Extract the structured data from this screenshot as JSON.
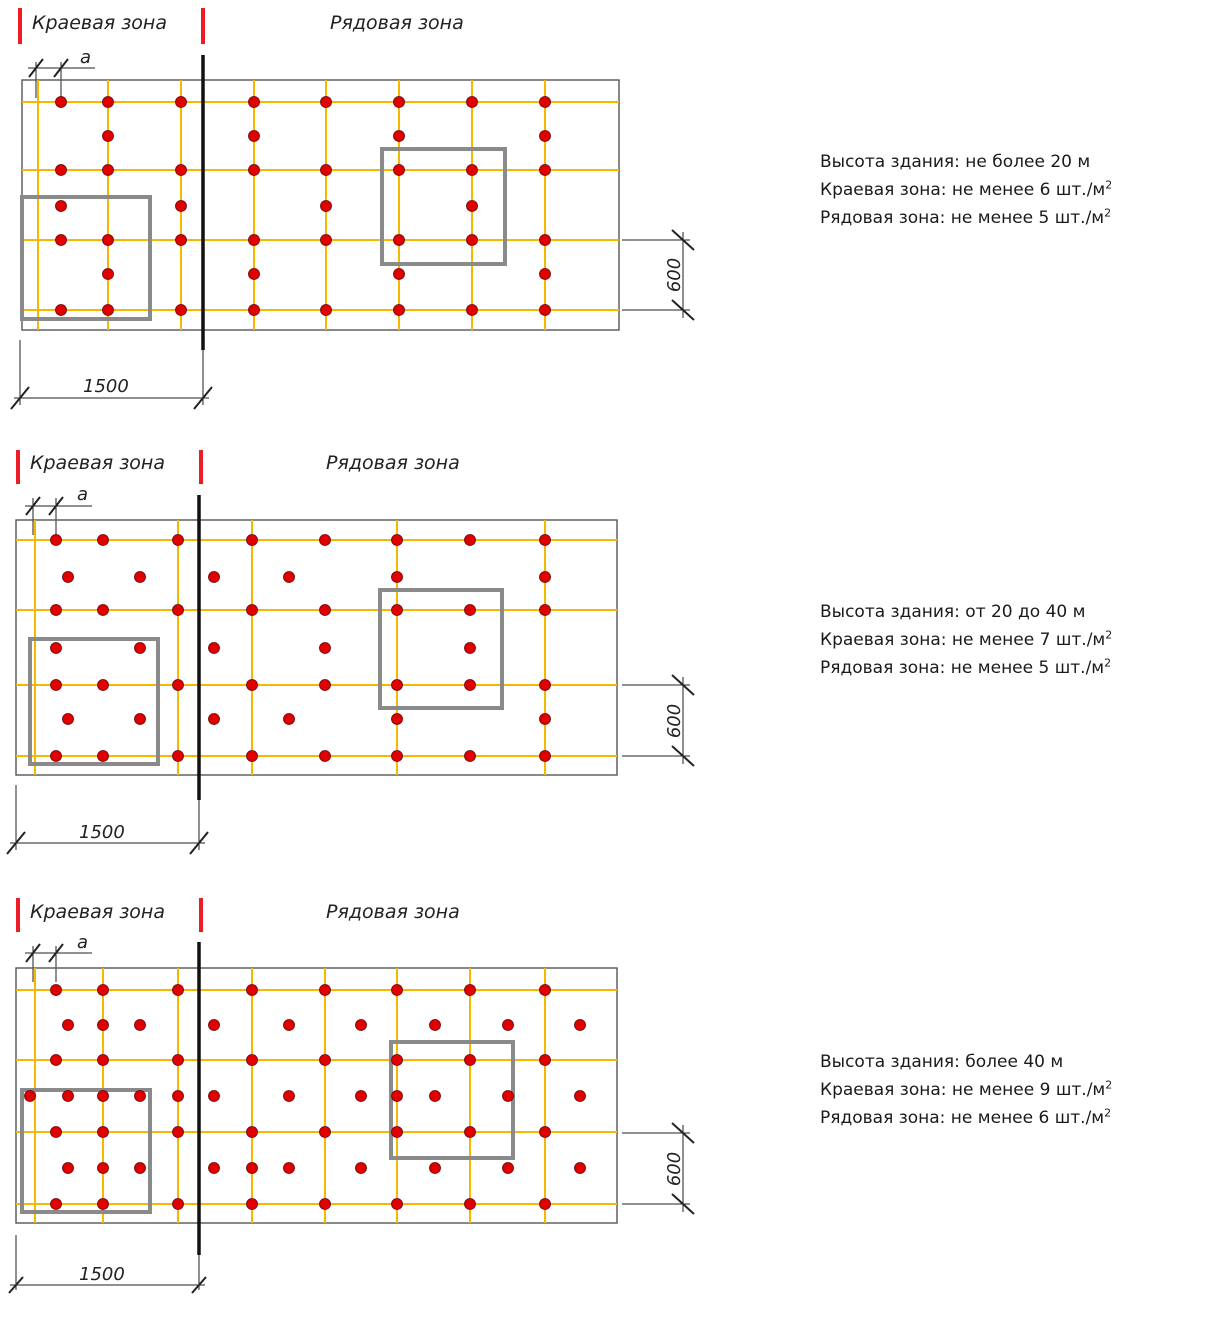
{
  "labels": {
    "edge_zone": "Краевая зона",
    "row_zone": "Рядовая зона",
    "dim_a": "a",
    "dim_1500": "1500",
    "dim_600": "600"
  },
  "colors": {
    "batten": "#f5b800",
    "dot": "#e00000",
    "zone_marker": "#ee1c25",
    "frame": "#555555",
    "square": "#8a8a8a"
  },
  "panels": [
    {
      "legend": {
        "height": "Высота здания: не более 20 м",
        "edge_prefix": "Краевая зона: не менее 6 шт./м",
        "row_prefix": "Рядовая зона: не менее 5 шт./м",
        "sup": "2"
      }
    },
    {
      "legend": {
        "height": "Высота здания: от 20 до 40 м",
        "edge_prefix": "Краевая зона: не менее 7 шт./м",
        "row_prefix": "Рядовая зона: не менее 5 шт./м",
        "sup": "2"
      }
    },
    {
      "legend": {
        "height": "Высота здания: более 40 м",
        "edge_prefix": "Краевая зона: не менее 9 шт./м",
        "row_prefix": "Рядовая зона: не менее 6 шт./м",
        "sup": "2"
      }
    }
  ]
}
